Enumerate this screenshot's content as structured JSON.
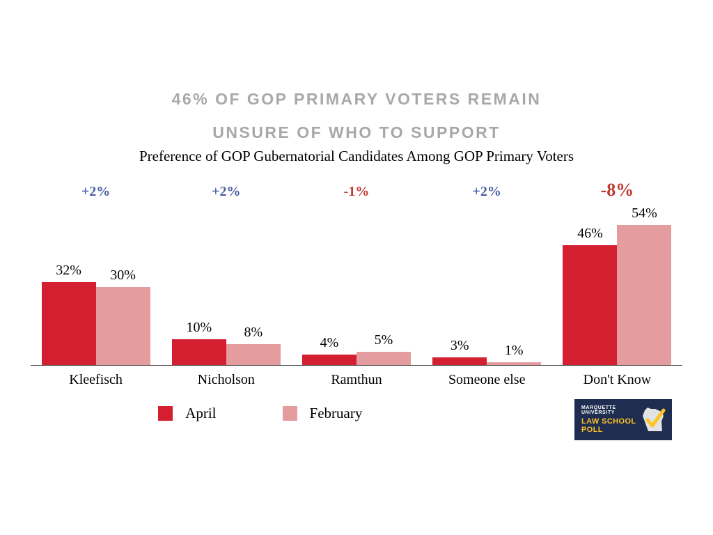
{
  "title": {
    "line1": "46% OF GOP PRIMARY VOTERS REMAIN",
    "line2": "UNSURE OF WHO TO SUPPORT"
  },
  "subtitle": "Preference of GOP Gubernatorial Candidates Among GOP Primary Voters",
  "chart_data": {
    "type": "bar",
    "categories": [
      "Kleefisch",
      "Nicholson",
      "Ramthun",
      "Someone else",
      "Don't Know"
    ],
    "series": [
      {
        "name": "April",
        "color": "#d31f30",
        "values": [
          32,
          10,
          4,
          3,
          46
        ]
      },
      {
        "name": "February",
        "color": "#e59c9f",
        "values": [
          30,
          8,
          5,
          1,
          54
        ]
      }
    ],
    "value_label_format": "{v}%",
    "changes": [
      {
        "label": "+2%",
        "color": "#4a5fa5",
        "emphasis": false
      },
      {
        "label": "+2%",
        "color": "#4a5fa5",
        "emphasis": false
      },
      {
        "label": "-1%",
        "color": "#c03a33",
        "emphasis": false
      },
      {
        "label": "+2%",
        "color": "#4a5fa5",
        "emphasis": false
      },
      {
        "label": "-8%",
        "color": "#c03a33",
        "emphasis": true
      }
    ],
    "ylim": [
      0,
      60
    ],
    "grid": false,
    "legend_position": "bottom"
  },
  "legend": {
    "items": [
      {
        "label": "April",
        "color": "#d31f30"
      },
      {
        "label": "February",
        "color": "#e59c9f"
      }
    ]
  },
  "logo": {
    "line1": "MARQUETTE UNIVERSITY",
    "line2": "LAW SCHOOL POLL",
    "bg_color": "#1e2d50",
    "accent_color": "#ffc425"
  },
  "colors": {
    "title_gray": "#a8a8a8",
    "positive_blue": "#4a5fa5",
    "negative_red": "#c03a33",
    "axis_line": "#4d4d4d"
  }
}
